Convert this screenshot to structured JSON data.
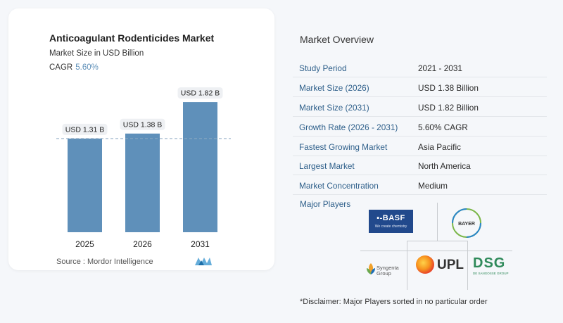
{
  "chart": {
    "title": "Anticoagulant Rodenticides Market",
    "subtitle": "Market Size in USD Billion",
    "cagr_label": "CAGR",
    "cagr_value": "5.60%",
    "source": "Source :  Mordor Intelligence",
    "bar_color": "#5f90ba",
    "bar_color_light": "#7ea9cb"
  },
  "chart_data": {
    "type": "bar",
    "categories": [
      "2025",
      "2026",
      "2031"
    ],
    "values": [
      1.31,
      1.38,
      1.82
    ],
    "data_labels": [
      "USD 1.31 B",
      "USD 1.38 B",
      "USD 1.82 B"
    ],
    "title": "Anticoagulant Rodenticides Market",
    "subtitle": "Market Size in USD Billion",
    "xlabel": "",
    "ylabel": "",
    "ylim": [
      0,
      2.0
    ],
    "grid": false,
    "reference_line": "dashed line at 2025 value"
  },
  "overview": {
    "title": "Market Overview",
    "rows": [
      {
        "label": "Study Period",
        "value": "2021 - 2031"
      },
      {
        "label": "Market Size (2026)",
        "value": "USD 1.38 Billion"
      },
      {
        "label": "Market Size (2031)",
        "value": "USD 1.82 Billion"
      },
      {
        "label": "Growth Rate (2026 - 2031)",
        "value": "5.60% CAGR"
      },
      {
        "label": "Fastest Growing Market",
        "value": "Asia Pacific"
      },
      {
        "label": "Largest Market",
        "value": "North America"
      },
      {
        "label": "Market Concentration",
        "value": "Medium"
      }
    ],
    "players_label": "Major Players",
    "players": {
      "basf": "BASF",
      "basf_tagline": "We create chemistry",
      "bayer": "BAYER",
      "upl": "UPL",
      "syngenta": "Syngenta",
      "syngenta_group": "Group",
      "dsg": "DSG",
      "dsg_tagline": "DE SANGOSSE GROUP"
    },
    "disclaimer": "*Disclaimer: Major Players sorted in no particular order"
  }
}
